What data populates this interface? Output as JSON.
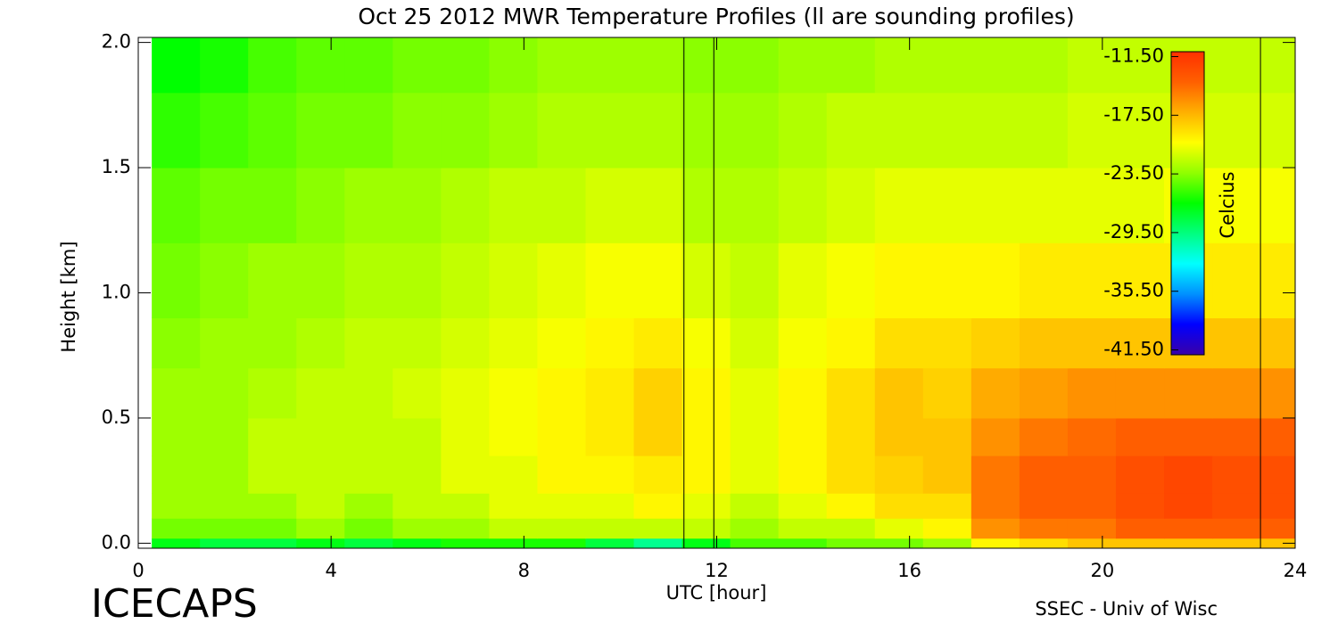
{
  "chart_data": {
    "type": "heatmap",
    "title": "Oct 25 2012 MWR Temperature Profiles (ll are sounding profiles)",
    "x_label": "UTC [hour]",
    "y_label": "Height [km]",
    "left_footer": "ICECAPS",
    "right_footer": "SSEC - Univ of Wisc",
    "colorbar_label": "Celcius",
    "xlim": [
      0,
      24
    ],
    "xticks": [
      0,
      4,
      8,
      12,
      16,
      20,
      24
    ],
    "ylim": [
      -0.02,
      2.02
    ],
    "yticks": [
      {
        "value": 0,
        "label": "0.0"
      },
      0.5,
      {
        "value": 1,
        "label": "1.0"
      },
      1.5,
      {
        "value": 2,
        "label": "2.0"
      }
    ],
    "colorbar_lim": [
      -42,
      -11
    ],
    "colorbar_ticks": [
      {
        "value": -11.5,
        "label": "-11.50"
      },
      {
        "value": -17.5,
        "label": "-17.50"
      },
      {
        "value": -23.5,
        "label": "-23.50"
      },
      {
        "value": -29.5,
        "label": "-29.50"
      },
      {
        "value": -35.5,
        "label": "-35.50"
      },
      {
        "value": -41.5,
        "label": "-41.50"
      }
    ],
    "colormap": [
      "#3a00a8",
      "#0000ff",
      "#0090ff",
      "#00ffff",
      "#00ff80",
      "#00ff00",
      "#90ff00",
      "#ffff00",
      "#ffb000",
      "#ff6000",
      "#ff3000"
    ],
    "sounding_times": [
      11.32,
      11.94,
      23.28
    ],
    "x_edges": [
      0.28,
      1.28,
      2.28,
      3.28,
      4.28,
      5.28,
      6.28,
      7.28,
      8.28,
      9.28,
      10.28,
      11.28,
      12.28,
      13.28,
      14.28,
      15.28,
      16.28,
      17.28,
      18.28,
      19.28,
      20.28,
      21.28,
      22.28,
      24
    ],
    "y_edges": [
      -0.02,
      0.02,
      0.1,
      0.2,
      0.35,
      0.5,
      0.7,
      0.9,
      1.2,
      1.5,
      1.8,
      2.02
    ],
    "z": [
      [
        -27,
        -28,
        -28,
        -27,
        -28,
        -27,
        -26,
        -26,
        -26,
        -28,
        -30,
        -27,
        -25,
        -25,
        -24,
        -24,
        -23,
        -20,
        -19,
        -18,
        -18,
        -18,
        -18
      ],
      [
        -24,
        -24,
        -24,
        -23,
        -24,
        -23,
        -23,
        -22,
        -22,
        -22,
        -22,
        -22,
        -23,
        -22,
        -22,
        -21,
        -20,
        -16,
        -15,
        -15,
        -14,
        -14,
        -14
      ],
      [
        -23,
        -23,
        -23,
        -22,
        -23,
        -22,
        -22,
        -21,
        -21,
        -21,
        -20,
        -21,
        -22,
        -21,
        -20,
        -19,
        -19,
        -15,
        -14,
        -14,
        -13,
        -12.5,
        -13
      ],
      [
        -23,
        -23,
        -22,
        -22,
        -22,
        -22,
        -21,
        -21,
        -20,
        -20,
        -19.5,
        -20,
        -21,
        -20,
        -19,
        -18.5,
        -18,
        -15,
        -14,
        -14,
        -13,
        -12.5,
        -13
      ],
      [
        -23,
        -23,
        -22,
        -22,
        -22,
        -22,
        -21,
        -20.5,
        -20,
        -19.5,
        -18.5,
        -20,
        -21,
        -20,
        -19,
        -18,
        -18,
        -16,
        -15,
        -14.5,
        -14,
        -14,
        -14
      ],
      [
        -23,
        -23,
        -22.5,
        -22,
        -22,
        -21.5,
        -21,
        -20.5,
        -20,
        -19.5,
        -18.5,
        -20,
        -21,
        -20,
        -19,
        -18,
        -18.5,
        -17,
        -16.5,
        -16,
        -16,
        -16,
        -16
      ],
      [
        -23.5,
        -23,
        -23,
        -22.5,
        -22,
        -22,
        -21.5,
        -21,
        -20.5,
        -20,
        -19.5,
        -20.5,
        -21.5,
        -20.5,
        -20,
        -19,
        -19,
        -18.5,
        -18,
        -18,
        -18,
        -18,
        -18
      ],
      [
        -24,
        -23.5,
        -23,
        -23,
        -22.5,
        -22.5,
        -22,
        -21.5,
        -21,
        -20.5,
        -20.5,
        -21.5,
        -22,
        -21,
        -20.5,
        -20,
        -20,
        -20,
        -19.5,
        -19.5,
        -19.5,
        -19.5,
        -19.5
      ],
      [
        -24.5,
        -24,
        -24,
        -23.5,
        -23,
        -23,
        -22.5,
        -22,
        -22,
        -21.5,
        -21.5,
        -22.5,
        -22.5,
        -22,
        -21.5,
        -21,
        -21,
        -21,
        -21,
        -21,
        -21,
        -20.5,
        -20.5
      ],
      [
        -25.5,
        -25,
        -24.5,
        -24,
        -24,
        -23.5,
        -23.5,
        -23,
        -22.5,
        -22.5,
        -22.5,
        -23,
        -23,
        -22.5,
        -22,
        -22,
        -22,
        -22,
        -22,
        -21.5,
        -21.5,
        -21.5,
        -21.5
      ],
      [
        -26.5,
        -26,
        -25,
        -24.5,
        -24.5,
        -24,
        -24,
        -23.5,
        -23,
        -23,
        -23,
        -23.5,
        -23.5,
        -23,
        -23,
        -22.5,
        -22.5,
        -22.5,
        -22.5,
        -22,
        -22,
        -22,
        -22
      ]
    ]
  }
}
